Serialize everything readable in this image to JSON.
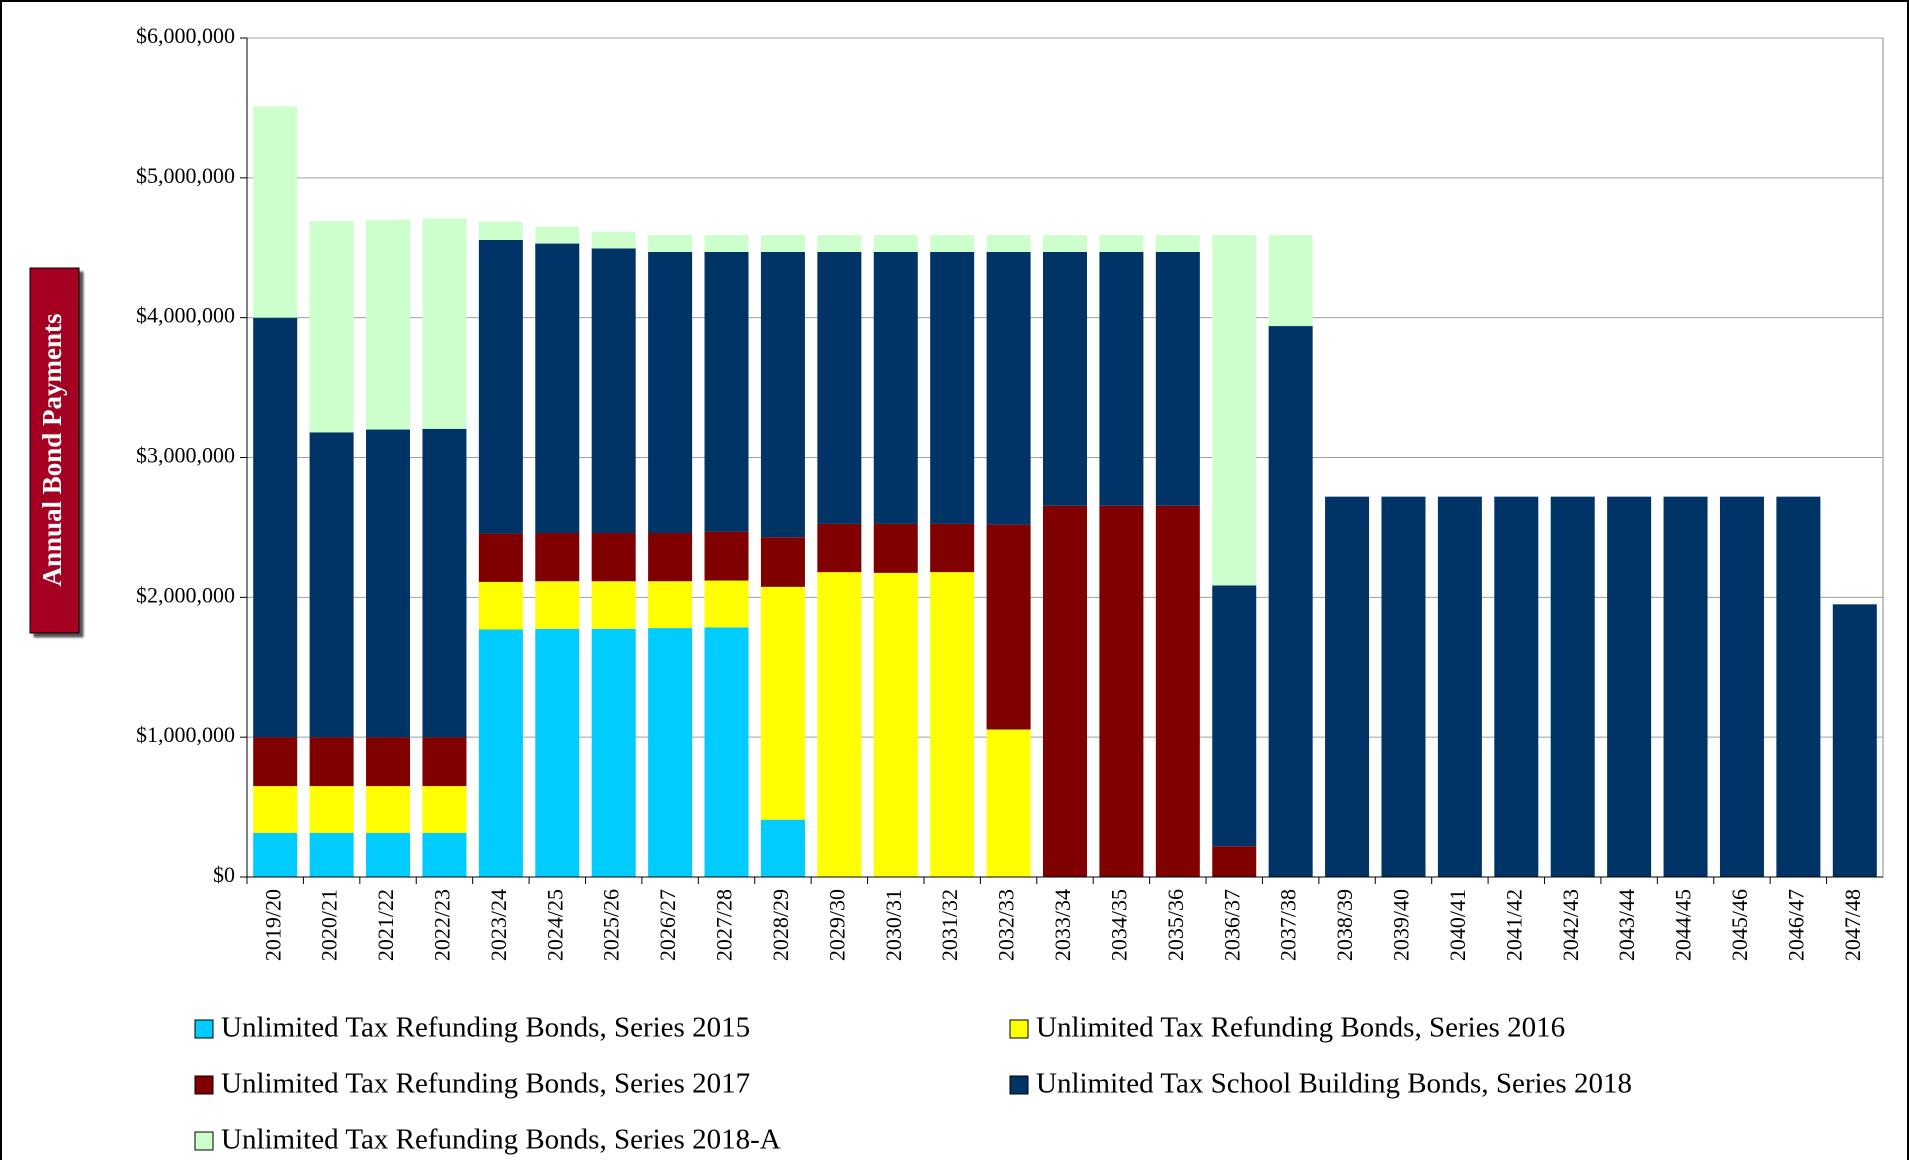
{
  "chart_data": {
    "type": "stacked_bar",
    "y_axis_label": "Annual Bond Payments",
    "categories": [
      "2019/20",
      "2020/21",
      "2021/22",
      "2022/23",
      "2023/24",
      "2024/25",
      "2025/26",
      "2026/27",
      "2027/28",
      "2028/29",
      "2029/30",
      "2030/31",
      "2031/32",
      "2032/33",
      "2033/34",
      "2034/35",
      "2035/36",
      "2036/37",
      "2037/38",
      "2038/39",
      "2039/40",
      "2040/41",
      "2041/42",
      "2042/43",
      "2043/44",
      "2044/45",
      "2045/46",
      "2046/47",
      "2047/48"
    ],
    "series": [
      {
        "name": "Unlimited Tax Refunding Bonds, Series 2015",
        "color": "#00ccff",
        "values": [
          315000,
          315000,
          315000,
          315000,
          1770000,
          1775000,
          1775000,
          1780000,
          1785000,
          410000,
          0,
          0,
          0,
          0,
          0,
          0,
          0,
          0,
          0,
          0,
          0,
          0,
          0,
          0,
          0,
          0,
          0,
          0,
          0
        ]
      },
      {
        "name": "Unlimited Tax Refunding Bonds, Series 2016",
        "color": "#ffff00",
        "values": [
          335000,
          335000,
          335000,
          335000,
          340000,
          340000,
          340000,
          335000,
          335000,
          1665000,
          2180000,
          2175000,
          2180000,
          1055000,
          0,
          0,
          0,
          0,
          0,
          0,
          0,
          0,
          0,
          0,
          0,
          0,
          0,
          0,
          0
        ]
      },
      {
        "name": "Unlimited Tax Refunding Bonds, Series 2017",
        "color": "#800000",
        "values": [
          350000,
          350000,
          350000,
          350000,
          346000,
          345000,
          345000,
          345000,
          350000,
          355000,
          345000,
          350000,
          345000,
          1465000,
          2655000,
          2655000,
          2655000,
          220000,
          0,
          0,
          0,
          0,
          0,
          0,
          0,
          0,
          0,
          0,
          0
        ]
      },
      {
        "name": "Unlimited Tax School Building Bonds, Series 2018",
        "color": "#003366",
        "values": [
          3000000,
          2180000,
          2200000,
          2205000,
          2100000,
          2070000,
          2035000,
          2010000,
          2000000,
          2040000,
          1945000,
          1945000,
          1945000,
          1950000,
          1815000,
          1815000,
          1815000,
          1865000,
          3940000,
          2720000,
          2720000,
          2720000,
          2720000,
          2720000,
          2720000,
          2720000,
          2720000,
          2720000,
          1950000
        ]
      },
      {
        "name": "Unlimited Tax Refunding Bonds, Series 2018-A",
        "color": "#ccffcc",
        "values": [
          1510000,
          1510000,
          1500000,
          1505000,
          130000,
          120000,
          120000,
          120000,
          120000,
          120000,
          120000,
          120000,
          120000,
          120000,
          120000,
          120000,
          120000,
          2505000,
          650000,
          0,
          0,
          0,
          0,
          0,
          0,
          0,
          0,
          0,
          0
        ]
      }
    ],
    "ylim": [
      0,
      6000000
    ],
    "yticks": [
      {
        "value": 0,
        "label": "$0"
      },
      {
        "value": 1000000,
        "label": "$1,000,000"
      },
      {
        "value": 2000000,
        "label": "$2,000,000"
      },
      {
        "value": 3000000,
        "label": "$3,000,000"
      },
      {
        "value": 4000000,
        "label": "$4,000,000"
      },
      {
        "value": 5000000,
        "label": "$5,000,000"
      },
      {
        "value": 6000000,
        "label": "$6,000,000"
      }
    ],
    "grid": true,
    "legend": "bottom"
  }
}
